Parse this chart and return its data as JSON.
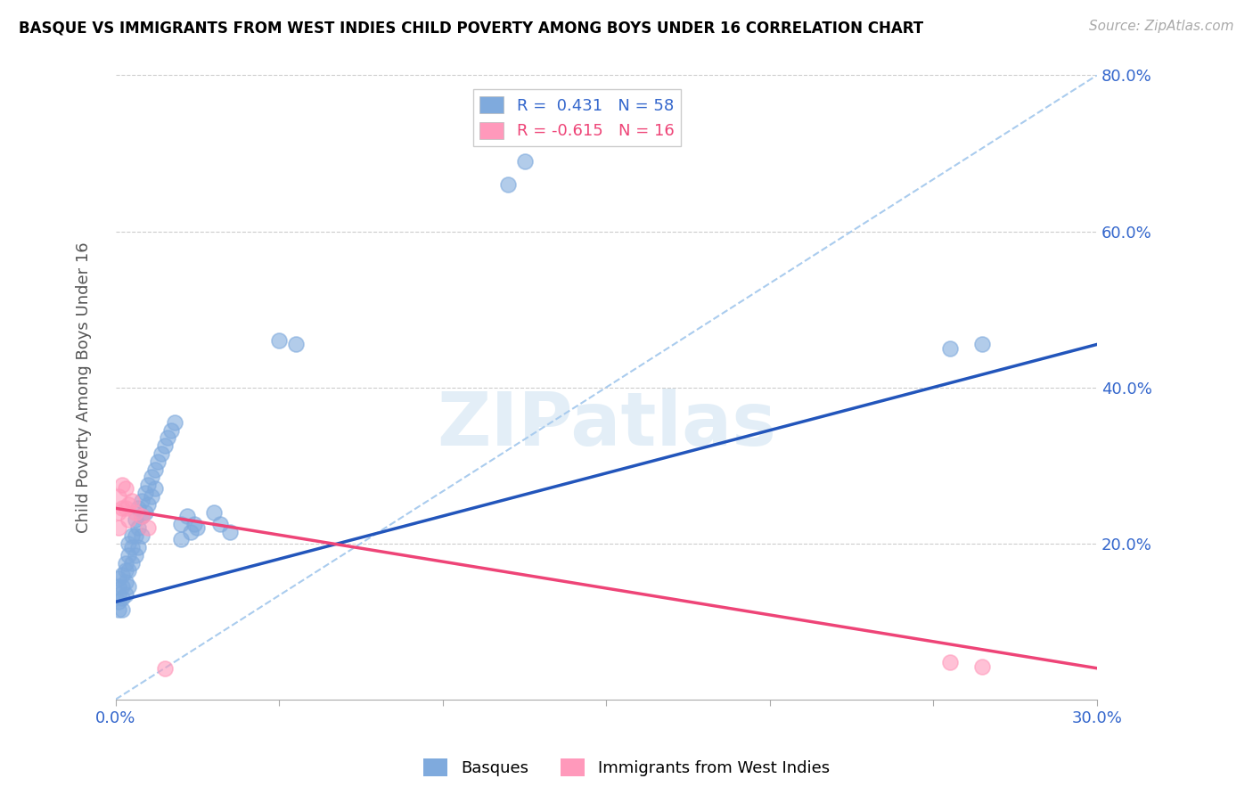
{
  "title": "BASQUE VS IMMIGRANTS FROM WEST INDIES CHILD POVERTY AMONG BOYS UNDER 16 CORRELATION CHART",
  "source": "Source: ZipAtlas.com",
  "ylabel": "Child Poverty Among Boys Under 16",
  "xlim": [
    0.0,
    0.3
  ],
  "ylim": [
    0.0,
    0.8
  ],
  "blue_color": "#7FAADD",
  "pink_color": "#FF99BB",
  "line_blue_color": "#2255BB",
  "line_pink_color": "#EE4477",
  "dashed_color": "#AACCEE",
  "R_blue": 0.431,
  "N_blue": 58,
  "R_pink": -0.615,
  "N_pink": 16,
  "watermark": "ZIPatlas",
  "blue_scatter_x": [
    0.001,
    0.001,
    0.001,
    0.001,
    0.001,
    0.002,
    0.002,
    0.002,
    0.002,
    0.003,
    0.003,
    0.003,
    0.003,
    0.004,
    0.004,
    0.004,
    0.004,
    0.005,
    0.005,
    0.005,
    0.006,
    0.006,
    0.006,
    0.007,
    0.007,
    0.007,
    0.008,
    0.008,
    0.008,
    0.009,
    0.009,
    0.01,
    0.01,
    0.011,
    0.011,
    0.012,
    0.012,
    0.013,
    0.014,
    0.015,
    0.016,
    0.017,
    0.018,
    0.02,
    0.02,
    0.022,
    0.023,
    0.024,
    0.025,
    0.03,
    0.032,
    0.035,
    0.05,
    0.055,
    0.12,
    0.125,
    0.255,
    0.265
  ],
  "blue_scatter_y": [
    0.155,
    0.145,
    0.135,
    0.125,
    0.115,
    0.16,
    0.145,
    0.13,
    0.115,
    0.175,
    0.165,
    0.15,
    0.135,
    0.2,
    0.185,
    0.165,
    0.145,
    0.21,
    0.195,
    0.175,
    0.23,
    0.21,
    0.185,
    0.245,
    0.22,
    0.195,
    0.255,
    0.235,
    0.21,
    0.265,
    0.24,
    0.275,
    0.25,
    0.285,
    0.26,
    0.295,
    0.27,
    0.305,
    0.315,
    0.325,
    0.335,
    0.345,
    0.355,
    0.225,
    0.205,
    0.235,
    0.215,
    0.225,
    0.22,
    0.24,
    0.225,
    0.215,
    0.46,
    0.455,
    0.66,
    0.69,
    0.45,
    0.455
  ],
  "pink_scatter_x": [
    0.001,
    0.001,
    0.001,
    0.002,
    0.002,
    0.003,
    0.003,
    0.004,
    0.004,
    0.005,
    0.006,
    0.008,
    0.01,
    0.015,
    0.255,
    0.265
  ],
  "pink_scatter_y": [
    0.26,
    0.24,
    0.22,
    0.275,
    0.245,
    0.27,
    0.245,
    0.25,
    0.23,
    0.255,
    0.24,
    0.235,
    0.22,
    0.04,
    0.048,
    0.042
  ],
  "blue_line_x0": 0.0,
  "blue_line_y0": 0.125,
  "blue_line_x1": 0.3,
  "blue_line_y1": 0.455,
  "pink_line_x0": 0.0,
  "pink_line_y0": 0.245,
  "pink_line_x1": 0.3,
  "pink_line_y1": 0.04
}
